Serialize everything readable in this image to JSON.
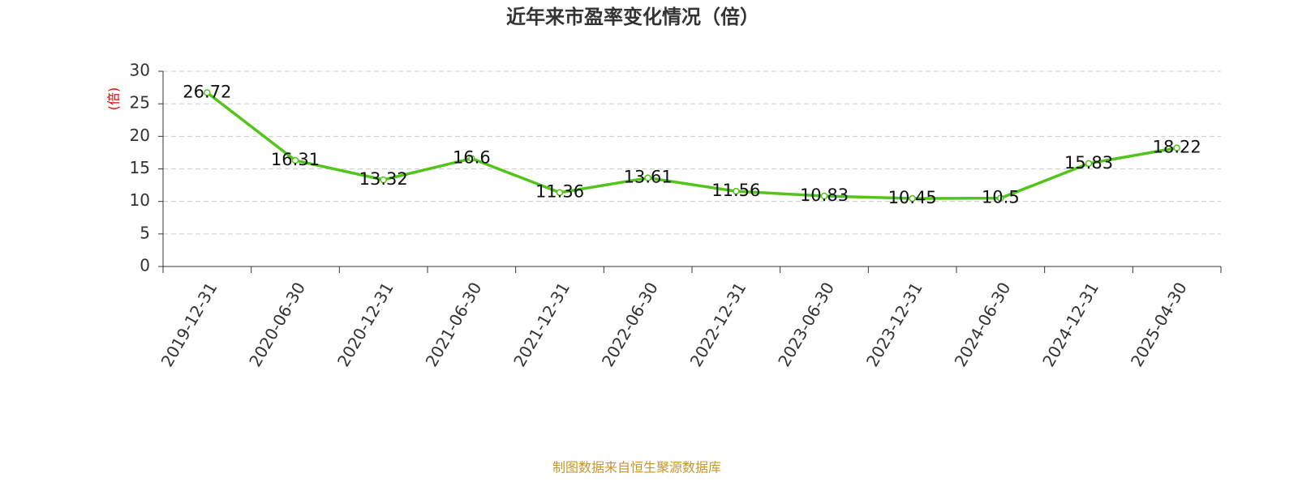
{
  "chart_data": {
    "type": "line",
    "title": "近年来市盈率变化情况（倍）",
    "y_label": "(倍)",
    "note": "制图数据来自恒生聚源数据库",
    "categories": [
      "2019-12-31",
      "2020-06-30",
      "2020-12-31",
      "2021-06-30",
      "2021-12-31",
      "2022-06-30",
      "2022-12-31",
      "2023-06-30",
      "2023-12-31",
      "2024-06-30",
      "2024-12-31",
      "2025-04-30"
    ],
    "values": [
      26.72,
      16.31,
      13.32,
      16.6,
      11.36,
      13.61,
      11.56,
      10.83,
      10.45,
      10.5,
      15.83,
      18.22
    ],
    "color": "#52c41a",
    "ylim": [
      0,
      30
    ],
    "yticks": [
      0,
      5,
      10,
      15,
      20,
      25,
      30
    ],
    "grid": true
  }
}
